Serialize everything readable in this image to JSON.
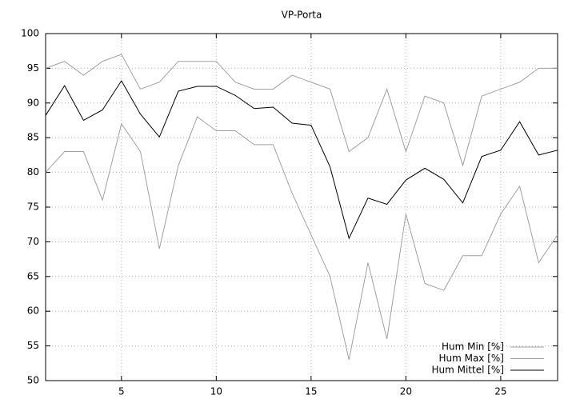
{
  "chart_data": {
    "type": "line",
    "title": "VP-Porta",
    "x": [
      1,
      2,
      3,
      4,
      5,
      6,
      7,
      8,
      9,
      10,
      11,
      12,
      13,
      14,
      15,
      16,
      17,
      18,
      19,
      20,
      21,
      22,
      23,
      24,
      25,
      26,
      27,
      28
    ],
    "xlim": [
      1,
      28
    ],
    "xticks": [
      5,
      10,
      15,
      20,
      25
    ],
    "ylim": [
      50,
      100
    ],
    "yticks": [
      50,
      55,
      60,
      65,
      70,
      75,
      80,
      85,
      90,
      95,
      100
    ],
    "grid": true,
    "legend": "bottom-right",
    "series": [
      {
        "name": "Hum Min [%]",
        "color": "#a0a0a0",
        "values": [
          80,
          83,
          83,
          76,
          87,
          83,
          69,
          81,
          88,
          86,
          86,
          84,
          84,
          77,
          71,
          65,
          53,
          67,
          56,
          74,
          64,
          63,
          68,
          68,
          74,
          78,
          67,
          71
        ]
      },
      {
        "name": "Hum Max [%]",
        "color": "#a0a0a0",
        "values": [
          95,
          96,
          94,
          96,
          97,
          92,
          93,
          96,
          96,
          96,
          93,
          92,
          92,
          94,
          93,
          92,
          83,
          85,
          92,
          83,
          91,
          90,
          81,
          91,
          92,
          93,
          95,
          95
        ]
      },
      {
        "name": "Hum Mittel [%]",
        "color": "#000000",
        "values": [
          88.2,
          92.5,
          87.5,
          89,
          93.2,
          88.4,
          85.1,
          91.7,
          92.4,
          92.4,
          91.1,
          89.2,
          89.4,
          87.1,
          86.8,
          80.8,
          70.5,
          76.3,
          75.4,
          78.9,
          80.6,
          79,
          75.6,
          82.3,
          83.2,
          87.3,
          82.5,
          83.2
        ]
      }
    ]
  }
}
